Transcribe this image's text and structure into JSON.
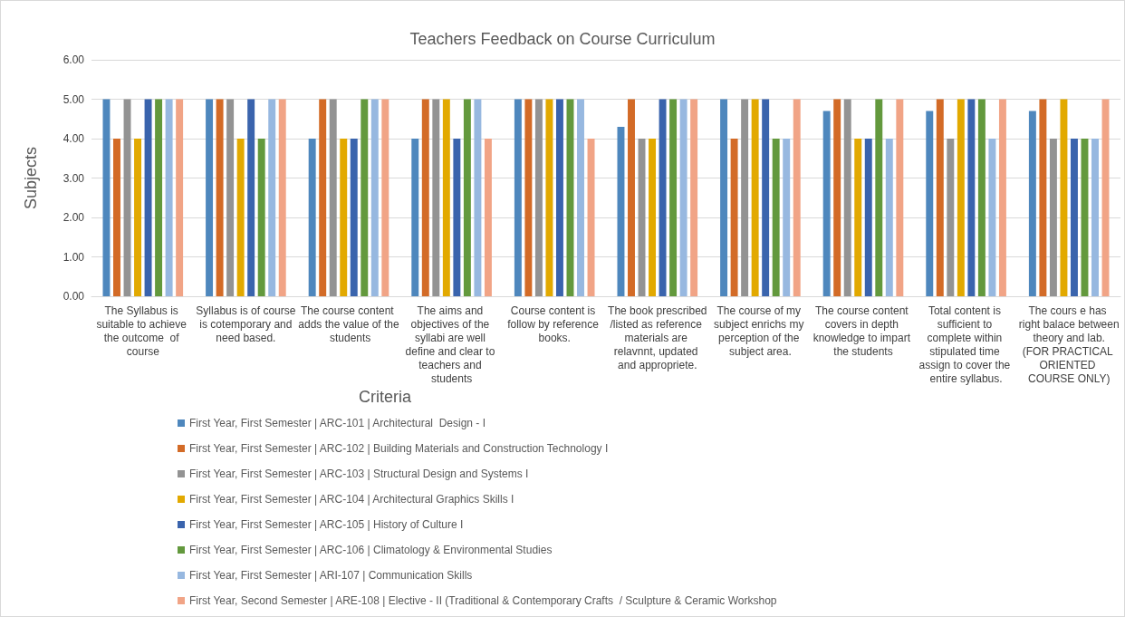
{
  "chart_data": {
    "type": "bar",
    "title": "Teachers Feedback on Course Curriculum",
    "xlabel": "Criteria",
    "ylabel": "Subjects",
    "categories": [
      "The Syllabus is suitable to achieve the outcome  of course",
      "Syllabus is of course is cotemporary and need based.",
      "The course content adds the value of the students",
      "The aims and objectives of the syllabi are well define and clear to teachers and students",
      "Course content is follow by reference books.",
      "The book prescribed/listed as reference materials are relavnnt, updated and appropriete.",
      "The course of my subject enrichs my perception of the subject area.",
      "The course content covers in depth knowledge to impart the students",
      "Total content is sufficient to complete within stipulated time assign to cover the entire syllabus.",
      "The cours e has right balace between theory and lab. (FOR PRACTICAL ORIENTED COURSE ONLY)"
    ],
    "series": [
      {
        "name": "First Year, First Semester | ARC-101 | Architectural  Design - I",
        "color": "#4e87bd",
        "values": [
          5,
          5,
          4,
          4,
          5,
          4.3,
          5,
          4.7,
          4.7,
          4.7
        ]
      },
      {
        "name": "First Year, First Semester | ARC-102 | Building Materials and Construction Technology I",
        "color": "#d36b27",
        "values": [
          4,
          5,
          5,
          5,
          5,
          5,
          4,
          5,
          5,
          5
        ]
      },
      {
        "name": "First Year, First Semester | ARC-103 | Structural Design and Systems I",
        "color": "#939393",
        "values": [
          5,
          5,
          5,
          5,
          5,
          4,
          5,
          5,
          4,
          4
        ]
      },
      {
        "name": "First Year, First Semester | ARC-104 | Architectural Graphics Skills I",
        "color": "#e2a900",
        "values": [
          4,
          4,
          4,
          5,
          5,
          4,
          5,
          4,
          5,
          5
        ]
      },
      {
        "name": "First Year, First Semester | ARC-105 | History of Culture I",
        "color": "#3a64ad",
        "values": [
          5,
          5,
          4,
          4,
          5,
          5,
          5,
          4,
          5,
          4
        ]
      },
      {
        "name": "First Year, First Semester | ARC-106 | Climatology & Environmental Studies",
        "color": "#63993d",
        "values": [
          5,
          4,
          5,
          5,
          5,
          5,
          4,
          5,
          5,
          4
        ]
      },
      {
        "name": "First Year, First Semester | ARI-107 | Communication Skills",
        "color": "#97b8e0",
        "values": [
          5,
          5,
          5,
          5,
          5,
          5,
          4,
          4,
          4,
          4
        ]
      },
      {
        "name": "First Year, Second Semester | ARE-108 | Elective - II (Traditional & Contemporary Crafts  / Sculpture & Ceramic Workshop",
        "color": "#f1a486",
        "values": [
          5,
          5,
          5,
          4,
          4,
          5,
          5,
          5,
          5,
          5
        ]
      }
    ],
    "ylim": [
      0,
      6
    ],
    "yticks": [
      {
        "value": 0,
        "label": "0.00"
      },
      {
        "value": 1,
        "label": "1.00"
      },
      {
        "value": 2,
        "label": "2.00"
      },
      {
        "value": 3,
        "label": "3.00"
      },
      {
        "value": 4,
        "label": "4.00"
      },
      {
        "value": 5,
        "label": "5.00"
      },
      {
        "value": 6,
        "label": "6.00"
      }
    ],
    "grid": "y",
    "legend": "bottom"
  }
}
